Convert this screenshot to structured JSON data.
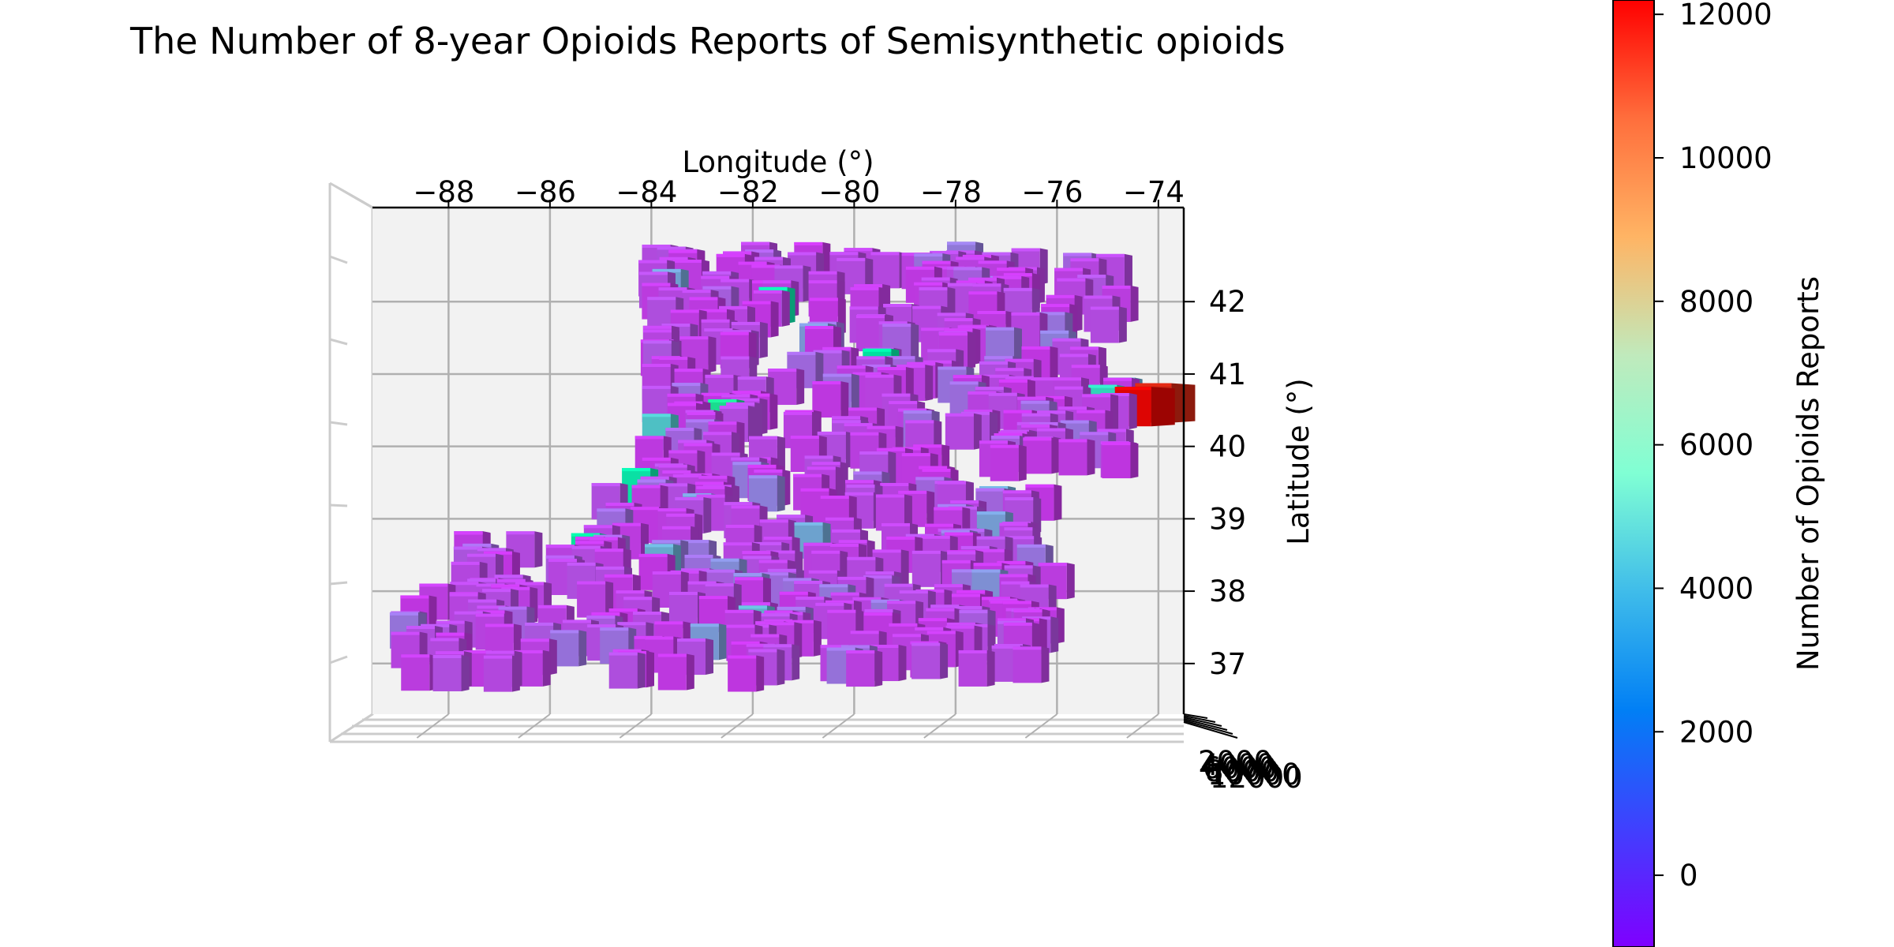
{
  "chart_data": {
    "type": "bar3d",
    "title": "The Number of 8-year Opioids Reports of Semisynthetic opioids",
    "xlabel": "Longitude (°)",
    "ylabel": "Latitude (°)",
    "colorbar_label": "Number of Opioids Reports",
    "colormap": "rainbow",
    "xlim": [
      -89.5,
      -73.5
    ],
    "ylim": [
      36.3,
      43.3
    ],
    "clim": [
      -1000,
      12200
    ],
    "x_ticks": [
      -88,
      -86,
      -84,
      -82,
      -80,
      -78,
      -76,
      -74
    ],
    "y_ticks": [
      37,
      38,
      39,
      40,
      41,
      42
    ],
    "colorbar_ticks": [
      0,
      2000,
      4000,
      6000,
      8000,
      10000,
      12000
    ],
    "z_tick_labels": [
      "2000",
      "4000",
      "6000",
      "8000",
      "10000",
      "12000"
    ],
    "grid": true,
    "background_bar_count": 520,
    "notable_bars": [
      {
        "lon": -74.5,
        "lat": 40.55,
        "value": 12100
      },
      {
        "lon": -74.1,
        "lat": 40.6,
        "value": 11500
      },
      {
        "lon": -75.1,
        "lat": 40.6,
        "value": 4200
      },
      {
        "lon": -74.75,
        "lat": 40.7,
        "value": 2600
      },
      {
        "lon": -83.7,
        "lat": 42.2,
        "value": 2300
      },
      {
        "lon": -81.6,
        "lat": 41.95,
        "value": 5200
      },
      {
        "lon": -79.55,
        "lat": 41.1,
        "value": 5600
      },
      {
        "lon": -82.6,
        "lat": 40.4,
        "value": 6400
      },
      {
        "lon": -83.9,
        "lat": 40.2,
        "value": 3300
      },
      {
        "lon": -84.3,
        "lat": 39.45,
        "value": 5300
      },
      {
        "lon": -85.3,
        "lat": 38.55,
        "value": 5800
      },
      {
        "lon": -77.25,
        "lat": 39.2,
        "value": 2500
      },
      {
        "lon": -77.3,
        "lat": 38.85,
        "value": 2200
      },
      {
        "lon": -77.4,
        "lat": 38.05,
        "value": 1900
      },
      {
        "lon": -83.85,
        "lat": 38.4,
        "value": 2600
      },
      {
        "lon": -82.0,
        "lat": 37.55,
        "value": 2800
      },
      {
        "lon": -80.9,
        "lat": 38.7,
        "value": 2400
      },
      {
        "lon": -83.1,
        "lat": 39.1,
        "value": 2200
      },
      {
        "lon": -82.55,
        "lat": 38.2,
        "value": 1800
      },
      {
        "lon": -80.8,
        "lat": 41.45,
        "value": 2000
      },
      {
        "lon": -82.95,
        "lat": 37.3,
        "value": 2100
      },
      {
        "lon": -76.05,
        "lat": 41.35,
        "value": 1500
      },
      {
        "lon": -81.8,
        "lat": 39.35,
        "value": 1500
      },
      {
        "lon": -82.1,
        "lat": 38.0,
        "value": 1700
      }
    ]
  }
}
